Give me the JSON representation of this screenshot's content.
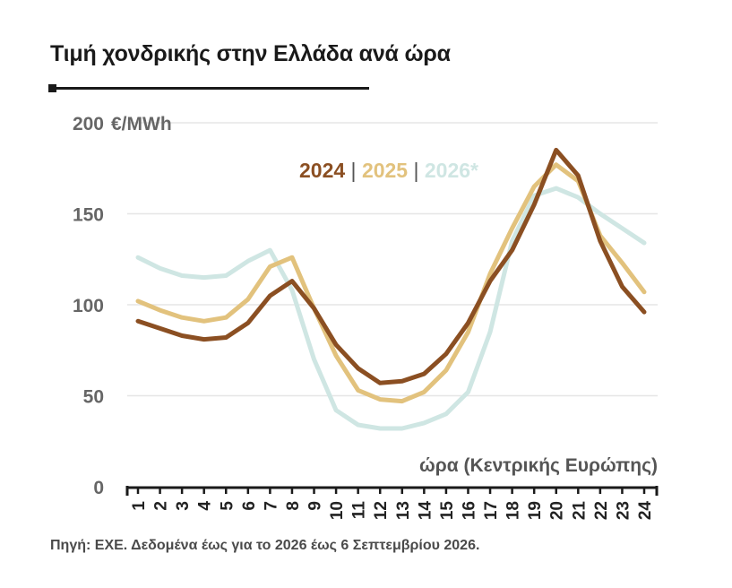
{
  "title": "Τιμή χονδρικής στην Ελλάδα ανά ώρα",
  "source": "Πηγή: ΕΧΕ. Δεδομένα έως για το 2026 έως 6 Σεπτεμβρίου 2026.",
  "legend_separator": "|",
  "chart_data": {
    "type": "line",
    "title": "Τιμή χονδρικής στην Ελλάδα ανά ώρα",
    "xlabel": "ώρα (Κεντρικής Ευρώπης)",
    "ylabel": "",
    "y_unit": "€/MWh",
    "ylim": [
      0,
      200
    ],
    "yticks": [
      0,
      50,
      100,
      150,
      200
    ],
    "grid": true,
    "legend_position": "top-right",
    "x": [
      1,
      2,
      3,
      4,
      5,
      6,
      7,
      8,
      9,
      10,
      11,
      12,
      13,
      14,
      15,
      16,
      17,
      18,
      19,
      20,
      21,
      22,
      23,
      24
    ],
    "x_tick_labels": [
      "1",
      "2",
      "3",
      "4",
      "5",
      "6",
      "7",
      "8",
      "9",
      "10",
      "11",
      "12",
      "13",
      "14",
      "15",
      "16",
      "17",
      "18",
      "19",
      "20",
      "21",
      "22",
      "23",
      "24"
    ],
    "series": [
      {
        "name": "2024",
        "color": "#8b4f22",
        "values": [
          91,
          87,
          83,
          81,
          82,
          90,
          105,
          113,
          98,
          78,
          65,
          57,
          58,
          62,
          73,
          90,
          113,
          130,
          155,
          185,
          171,
          135,
          110,
          96
        ]
      },
      {
        "name": "2025",
        "color": "#e2c27d",
        "values": [
          102,
          97,
          93,
          91,
          93,
          103,
          121,
          126,
          98,
          72,
          53,
          48,
          47,
          52,
          64,
          85,
          117,
          142,
          165,
          177,
          168,
          138,
          123,
          107
        ]
      },
      {
        "name": "2026*",
        "color": "#cfe6e3",
        "values": [
          126,
          120,
          116,
          115,
          116,
          124,
          130,
          108,
          70,
          42,
          34,
          32,
          32,
          35,
          40,
          52,
          85,
          135,
          160,
          164,
          159,
          150,
          142,
          134
        ]
      }
    ]
  }
}
